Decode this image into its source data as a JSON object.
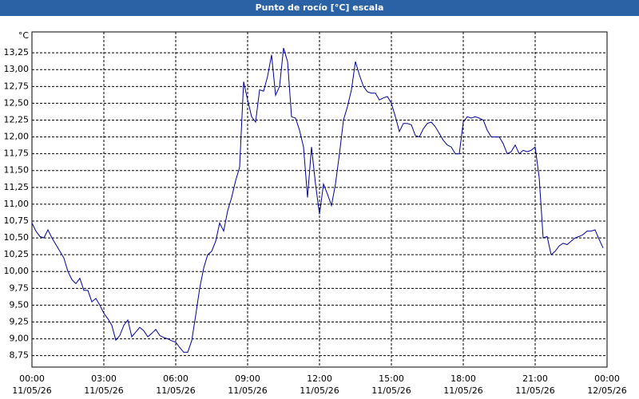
{
  "chart_data": {
    "type": "line",
    "title": "Punto de rocío [°C] escala",
    "y_label": "°C",
    "x": [
      0,
      10,
      20,
      30,
      40,
      50,
      60,
      70,
      80,
      90,
      100,
      110,
      120,
      130,
      140,
      150,
      160,
      170,
      180,
      190,
      200,
      210,
      220,
      230,
      240,
      250,
      260,
      270,
      280,
      290,
      300,
      310,
      320,
      330,
      340,
      350,
      360,
      370,
      380,
      390,
      400,
      410,
      420,
      430,
      440,
      450,
      460,
      470,
      480,
      490,
      500,
      510,
      520,
      530,
      540,
      550,
      560,
      570,
      580,
      590,
      600,
      610,
      620,
      630,
      640,
      650,
      660,
      670,
      680,
      690,
      700,
      710,
      720,
      730,
      740,
      750,
      760,
      770,
      780,
      790,
      800,
      810,
      820,
      830,
      840,
      850,
      860,
      870,
      880,
      890,
      900,
      910,
      920,
      930,
      940,
      950,
      960,
      970,
      980,
      990,
      1000,
      1010,
      1020,
      1030,
      1040,
      1050,
      1060,
      1070,
      1080,
      1090,
      1100,
      1110,
      1120,
      1130,
      1140,
      1150,
      1160,
      1170,
      1180,
      1190,
      1200,
      1210,
      1220,
      1230,
      1240,
      1250,
      1260,
      1270,
      1280,
      1290,
      1300,
      1310,
      1320,
      1330,
      1340,
      1350,
      1360,
      1370,
      1380,
      1390,
      1400,
      1410,
      1420,
      1430
    ],
    "series": [
      {
        "name": "Punto de rocío",
        "color": "#000090",
        "values": [
          10.72,
          10.6,
          10.52,
          10.5,
          10.62,
          10.5,
          10.4,
          10.3,
          10.2,
          10.0,
          9.88,
          9.82,
          9.9,
          9.72,
          9.72,
          9.55,
          9.6,
          9.5,
          9.38,
          9.3,
          9.2,
          8.98,
          9.05,
          9.2,
          9.28,
          9.03,
          9.1,
          9.17,
          9.12,
          9.03,
          9.08,
          9.14,
          9.05,
          9.02,
          9.0,
          8.97,
          8.95,
          8.87,
          8.8,
          8.8,
          8.97,
          9.35,
          9.75,
          10.05,
          10.25,
          10.3,
          10.45,
          10.72,
          10.6,
          10.9,
          11.1,
          11.35,
          11.55,
          12.82,
          12.55,
          12.3,
          12.22,
          12.7,
          12.68,
          12.9,
          13.22,
          12.62,
          12.75,
          13.32,
          13.12,
          12.3,
          12.28,
          12.1,
          11.85,
          11.1,
          11.85,
          11.3,
          10.85,
          11.3,
          11.15,
          10.98,
          11.3,
          11.75,
          12.25,
          12.45,
          12.7,
          13.12,
          12.92,
          12.75,
          12.67,
          12.65,
          12.65,
          12.55,
          12.58,
          12.6,
          12.5,
          12.3,
          12.08,
          12.2,
          12.2,
          12.18,
          12.02,
          12.0,
          12.12,
          12.2,
          12.22,
          12.15,
          12.05,
          11.95,
          11.88,
          11.85,
          11.75,
          11.75,
          12.22,
          12.3,
          12.28,
          12.3,
          12.28,
          12.25,
          12.1,
          12.0,
          12.0,
          12.0,
          11.9,
          11.75,
          11.78,
          11.88,
          11.75,
          11.8,
          11.78,
          11.8,
          11.85,
          11.4,
          10.5,
          10.52,
          10.25,
          10.3,
          10.38,
          10.42,
          10.4,
          10.45,
          10.5,
          10.52,
          10.55,
          10.6,
          10.6,
          10.62,
          10.48,
          10.35
        ]
      }
    ],
    "xlim": [
      0,
      1440
    ],
    "xticks": [
      {
        "value": 0,
        "label": "00:00"
      },
      {
        "value": 180,
        "label": "03:00"
      },
      {
        "value": 360,
        "label": "06:00"
      },
      {
        "value": 540,
        "label": "09:00"
      },
      {
        "value": 720,
        "label": "12:00"
      },
      {
        "value": 900,
        "label": "15:00"
      },
      {
        "value": 1080,
        "label": "18:00"
      },
      {
        "value": 1260,
        "label": "21:00"
      },
      {
        "value": 1440,
        "label": "00:00"
      }
    ],
    "xtick_dates": [
      "11/05/26",
      "11/05/26",
      "11/05/26",
      "11/05/26",
      "11/05/26",
      "11/05/26",
      "11/05/26",
      "11/05/26",
      "12/05/26"
    ],
    "ylim": [
      8.58,
      13.56
    ],
    "yticks": [
      {
        "value": 8.75,
        "label": "8,75"
      },
      {
        "value": 9,
        "label": "9,00"
      },
      {
        "value": 9.25,
        "label": "9,25"
      },
      {
        "value": 9.5,
        "label": "9,50"
      },
      {
        "value": 9.75,
        "label": "9,75"
      },
      {
        "value": 10,
        "label": "10,00"
      },
      {
        "value": 10.25,
        "label": "10,25"
      },
      {
        "value": 10.5,
        "label": "10,50"
      },
      {
        "value": 10.75,
        "label": "10,75"
      },
      {
        "value": 11,
        "label": "11,00"
      },
      {
        "value": 11.25,
        "label": "11,25"
      },
      {
        "value": 11.5,
        "label": "11,50"
      },
      {
        "value": 11.75,
        "label": "11,75"
      },
      {
        "value": 12,
        "label": "12,00"
      },
      {
        "value": 12.25,
        "label": "12,25"
      },
      {
        "value": 12.5,
        "label": "12,50"
      },
      {
        "value": 12.75,
        "label": "12,75"
      },
      {
        "value": 13,
        "label": "13,00"
      },
      {
        "value": 13.25,
        "label": "13,25"
      }
    ],
    "grid": true
  }
}
